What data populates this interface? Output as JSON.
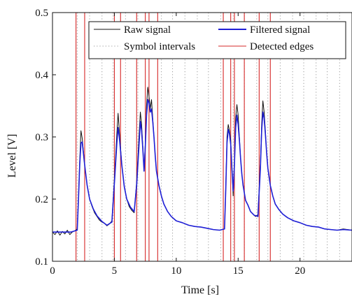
{
  "chart_data": {
    "type": "line",
    "title": "",
    "xlabel": "Time [s]",
    "ylabel": "Level [V]",
    "xlim": [
      0,
      24.2
    ],
    "ylim": [
      0.1,
      0.5
    ],
    "x_ticks": [
      0,
      5,
      10,
      15,
      20
    ],
    "x_tick_labels": [
      "0",
      "5",
      "10",
      "15",
      "20"
    ],
    "y_ticks": [
      0.1,
      0.2,
      0.3,
      0.4,
      0.5
    ],
    "y_tick_labels": [
      "0.1",
      "0.2",
      "0.3",
      "0.4",
      "0.5"
    ],
    "legend": {
      "position": "top-right",
      "entries": [
        {
          "label": "Raw signal",
          "color": "#111111",
          "style": "solid"
        },
        {
          "label": "Filtered signal",
          "color": "#1f1fd6",
          "style": "solid"
        },
        {
          "label": "Symbol intervals",
          "color": "#9a9a9a",
          "style": "dotted"
        },
        {
          "label": "Detected edges",
          "color": "#d62828",
          "style": "solid"
        }
      ]
    },
    "series": [
      {
        "name": "Raw signal",
        "color": "#111111",
        "x": [
          0.0,
          0.2,
          0.4,
          0.6,
          0.8,
          1.0,
          1.2,
          1.4,
          1.6,
          1.8,
          2.0,
          2.1,
          2.2,
          2.3,
          2.4,
          2.6,
          2.8,
          3.0,
          3.2,
          3.4,
          3.6,
          3.8,
          4.0,
          4.2,
          4.4,
          4.6,
          4.8,
          5.0,
          5.2,
          5.3,
          5.4,
          5.6,
          5.8,
          6.0,
          6.2,
          6.4,
          6.6,
          6.8,
          7.0,
          7.1,
          7.2,
          7.3,
          7.4,
          7.5,
          7.6,
          7.7,
          7.8,
          7.9,
          8.0,
          8.1,
          8.2,
          8.3,
          8.4,
          8.6,
          8.8,
          9.0,
          9.3,
          9.6,
          10.0,
          10.5,
          11.0,
          11.5,
          12.0,
          12.5,
          13.0,
          13.5,
          13.9,
          14.0,
          14.1,
          14.2,
          14.3,
          14.4,
          14.5,
          14.6,
          14.7,
          14.8,
          14.9,
          15.0,
          15.1,
          15.2,
          15.3,
          15.4,
          15.5,
          15.6,
          15.8,
          16.0,
          16.2,
          16.4,
          16.6,
          16.8,
          16.9,
          17.0,
          17.1,
          17.2,
          17.3,
          17.4,
          17.6,
          17.8,
          18.0,
          18.3,
          18.6,
          19.0,
          19.5,
          20.0,
          20.5,
          21.0,
          21.5,
          22.0,
          22.5,
          23.0,
          23.5,
          24.2
        ],
        "y": [
          0.147,
          0.143,
          0.149,
          0.142,
          0.148,
          0.144,
          0.15,
          0.143,
          0.147,
          0.149,
          0.152,
          0.205,
          0.262,
          0.31,
          0.298,
          0.255,
          0.222,
          0.2,
          0.188,
          0.178,
          0.172,
          0.166,
          0.163,
          0.161,
          0.157,
          0.16,
          0.165,
          0.232,
          0.305,
          0.338,
          0.31,
          0.255,
          0.22,
          0.2,
          0.188,
          0.182,
          0.178,
          0.228,
          0.305,
          0.34,
          0.32,
          0.285,
          0.245,
          0.29,
          0.35,
          0.38,
          0.365,
          0.345,
          0.36,
          0.33,
          0.3,
          0.27,
          0.245,
          0.222,
          0.205,
          0.192,
          0.18,
          0.172,
          0.165,
          0.162,
          0.158,
          0.156,
          0.155,
          0.153,
          0.151,
          0.15,
          0.152,
          0.22,
          0.3,
          0.32,
          0.31,
          0.295,
          0.25,
          0.205,
          0.26,
          0.33,
          0.352,
          0.335,
          0.3,
          0.265,
          0.24,
          0.222,
          0.21,
          0.198,
          0.19,
          0.18,
          0.176,
          0.172,
          0.175,
          0.26,
          0.32,
          0.358,
          0.34,
          0.31,
          0.275,
          0.25,
          0.222,
          0.205,
          0.192,
          0.183,
          0.176,
          0.17,
          0.165,
          0.162,
          0.158,
          0.156,
          0.155,
          0.152,
          0.151,
          0.15,
          0.152,
          0.15
        ]
      },
      {
        "name": "Filtered signal",
        "color": "#1f1fd6",
        "x": [
          0.0,
          0.5,
          1.0,
          1.5,
          2.0,
          2.1,
          2.2,
          2.3,
          2.4,
          2.6,
          2.8,
          3.0,
          3.3,
          3.6,
          4.0,
          4.4,
          4.8,
          5.0,
          5.2,
          5.3,
          5.4,
          5.6,
          5.8,
          6.0,
          6.3,
          6.6,
          6.8,
          7.0,
          7.1,
          7.2,
          7.3,
          7.4,
          7.5,
          7.6,
          7.7,
          7.8,
          7.9,
          8.0,
          8.1,
          8.2,
          8.3,
          8.4,
          8.6,
          8.8,
          9.0,
          9.3,
          9.6,
          10.0,
          10.5,
          11.0,
          11.5,
          12.0,
          12.5,
          13.0,
          13.5,
          13.9,
          14.0,
          14.1,
          14.2,
          14.3,
          14.4,
          14.5,
          14.6,
          14.7,
          14.8,
          14.9,
          15.0,
          15.1,
          15.2,
          15.3,
          15.4,
          15.6,
          15.8,
          16.0,
          16.3,
          16.6,
          16.8,
          16.9,
          17.0,
          17.1,
          17.2,
          17.3,
          17.4,
          17.6,
          17.8,
          18.0,
          18.3,
          18.6,
          19.0,
          19.5,
          20.0,
          20.5,
          21.0,
          21.5,
          22.0,
          22.5,
          23.0,
          23.5,
          24.2
        ],
        "y": [
          0.147,
          0.147,
          0.147,
          0.147,
          0.15,
          0.2,
          0.255,
          0.29,
          0.292,
          0.255,
          0.222,
          0.2,
          0.184,
          0.173,
          0.164,
          0.158,
          0.163,
          0.225,
          0.29,
          0.315,
          0.3,
          0.255,
          0.22,
          0.2,
          0.187,
          0.18,
          0.222,
          0.29,
          0.325,
          0.31,
          0.28,
          0.245,
          0.285,
          0.335,
          0.36,
          0.355,
          0.34,
          0.345,
          0.325,
          0.3,
          0.27,
          0.245,
          0.222,
          0.205,
          0.192,
          0.18,
          0.172,
          0.165,
          0.162,
          0.158,
          0.156,
          0.155,
          0.153,
          0.151,
          0.15,
          0.152,
          0.215,
          0.29,
          0.312,
          0.305,
          0.288,
          0.248,
          0.213,
          0.255,
          0.315,
          0.335,
          0.32,
          0.295,
          0.265,
          0.24,
          0.222,
          0.198,
          0.19,
          0.18,
          0.174,
          0.172,
          0.25,
          0.31,
          0.34,
          0.33,
          0.305,
          0.275,
          0.25,
          0.222,
          0.205,
          0.192,
          0.183,
          0.176,
          0.17,
          0.165,
          0.162,
          0.158,
          0.156,
          0.155,
          0.152,
          0.151,
          0.15,
          0.151,
          0.15
        ]
      }
    ],
    "symbol_intervals": [
      2.0,
      3.0,
      4.0,
      4.9,
      5.9,
      6.9,
      7.8,
      8.8,
      9.7,
      10.7,
      11.7,
      12.6,
      13.6,
      14.6,
      15.5,
      16.5,
      17.4,
      18.4,
      19.4,
      20.3,
      21.3,
      22.2,
      23.2
    ],
    "detected_edges": [
      1.9,
      2.6,
      5.0,
      5.5,
      6.8,
      7.5,
      7.8,
      8.5,
      13.8,
      14.4,
      14.7,
      15.5,
      16.7,
      17.6
    ]
  }
}
